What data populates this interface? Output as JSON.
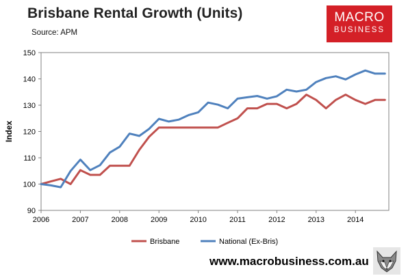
{
  "title": "Brisbane Rental Growth (Units)",
  "source": "Source: APM",
  "logo": {
    "line1": "MACRO",
    "line2": "BUSINESS"
  },
  "website": "www.macrobusiness.com.au",
  "colors": {
    "brisbane": "#c0504d",
    "national": "#4f81bd",
    "logo_bg": "#d42027"
  },
  "chart_data": {
    "type": "line",
    "ylabel": "Index",
    "xlabel": "",
    "xlim": [
      2006,
      2014.85
    ],
    "ylim": [
      90,
      150
    ],
    "yticks": [
      90,
      100,
      110,
      120,
      130,
      140,
      150
    ],
    "xticks": [
      2006,
      2007,
      2008,
      2009,
      2010,
      2011,
      2012,
      2013,
      2014
    ],
    "grid": false,
    "legend": "bottom",
    "x": [
      2006,
      2006.25,
      2006.5,
      2006.75,
      2007,
      2007.25,
      2007.5,
      2007.75,
      2008,
      2008.25,
      2008.5,
      2008.75,
      2009,
      2009.25,
      2009.5,
      2009.75,
      2010,
      2010.25,
      2010.5,
      2010.75,
      2011,
      2011.25,
      2011.5,
      2011.75,
      2012,
      2012.25,
      2012.5,
      2012.75,
      2013,
      2013.25,
      2013.5,
      2013.75,
      2014,
      2014.25,
      2014.5,
      2014.75
    ],
    "series": [
      {
        "name": "Brisbane",
        "values": [
          100,
          101,
          102,
          100,
          105.3,
          103.5,
          103.5,
          107,
          107,
          107,
          113,
          118,
          121.5,
          121.5,
          121.5,
          121.5,
          121.5,
          121.5,
          121.5,
          123.3,
          125,
          128.8,
          128.8,
          130.5,
          130.5,
          128.8,
          130.5,
          134,
          132,
          128.8,
          132,
          134,
          132,
          130.5,
          132,
          132
        ]
      },
      {
        "name": "National (Ex-Bris)",
        "values": [
          100,
          99.5,
          98.8,
          105,
          109.3,
          105.3,
          107.2,
          112,
          114.2,
          119.2,
          118.3,
          121,
          124.8,
          123.8,
          124.5,
          126.2,
          127.3,
          131,
          130.2,
          128.8,
          132.5,
          133,
          133.5,
          132.5,
          133.4,
          135.9,
          135.2,
          135.9,
          138.8,
          140.3,
          141,
          139.8,
          141.7,
          143.2,
          142,
          142
        ]
      }
    ]
  }
}
